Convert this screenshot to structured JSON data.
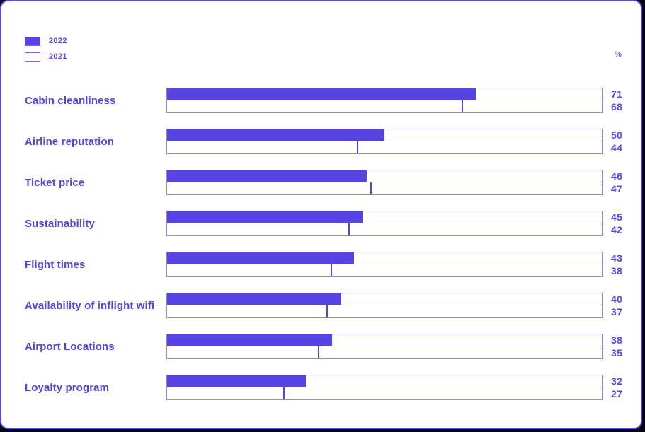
{
  "chart_data": {
    "type": "bar",
    "orientation": "horizontal",
    "title": "",
    "unit": "%",
    "xlim": [
      0,
      100
    ],
    "grid": false,
    "legend_position": "top-left",
    "categories": [
      "Cabin cleanliness",
      "Airline reputation",
      "Ticket price",
      "Sustainability",
      "Flight times",
      "Availability of inflight wifi",
      "Airport Locations",
      "Loyalty program"
    ],
    "series": [
      {
        "name": "2022",
        "style": "filled",
        "values": [
          71,
          50,
          46,
          45,
          43,
          40,
          38,
          32
        ]
      },
      {
        "name": "2021",
        "style": "outlined",
        "values": [
          68,
          44,
          47,
          42,
          38,
          37,
          35,
          27
        ]
      }
    ]
  },
  "legend": {
    "items": [
      {
        "label": "2022"
      },
      {
        "label": "2021"
      }
    ]
  },
  "unit_label": "%",
  "colors": {
    "bar_fill": "#5742e2",
    "bar_border": "#9183ef",
    "text": "#5345e0",
    "card_border": "#5b47e8",
    "page_background": "#07070f"
  }
}
